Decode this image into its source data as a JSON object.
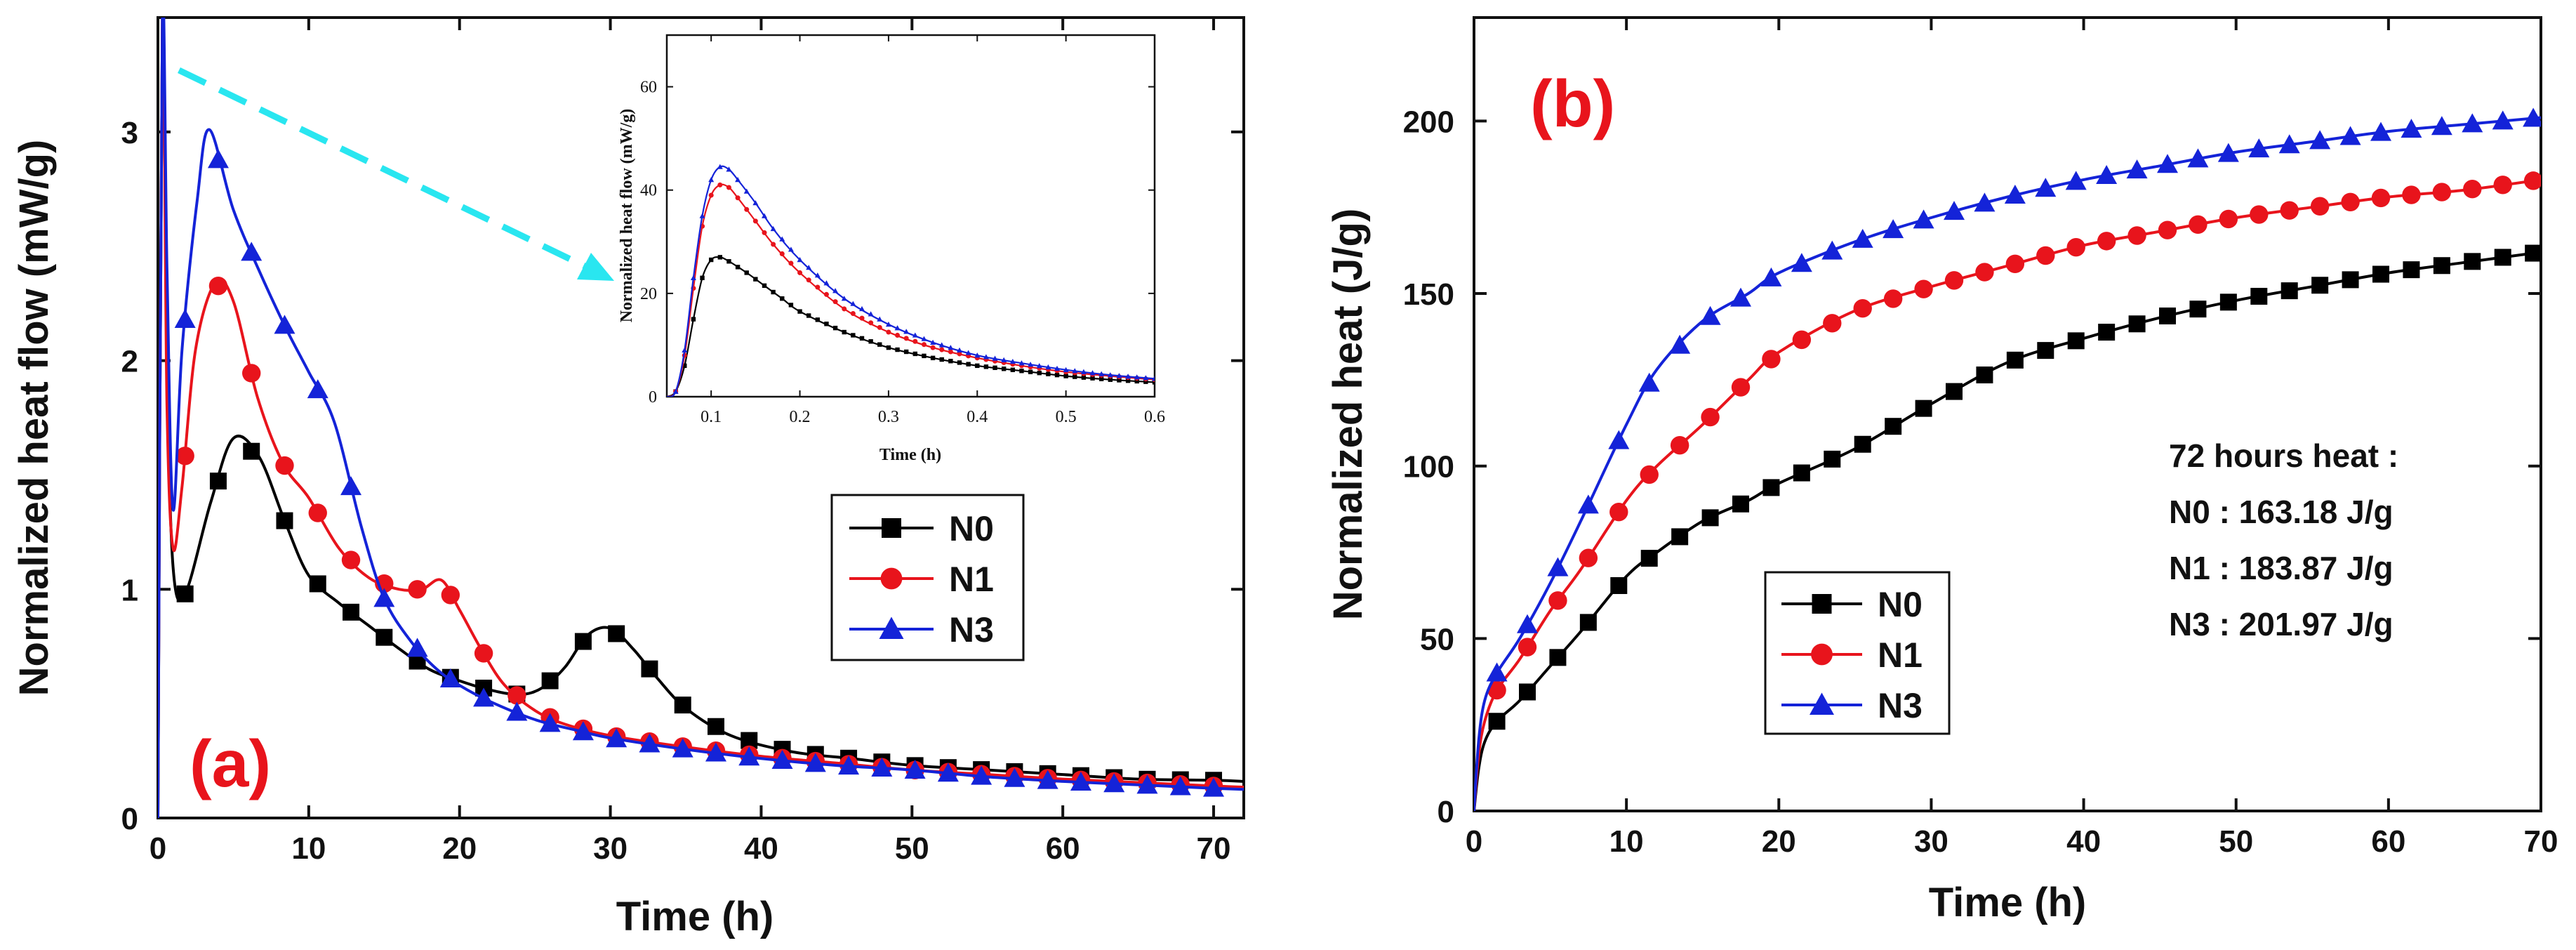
{
  "chart_data": [
    {
      "type": "line",
      "panel_label": "(a)",
      "xlabel": "Time (h)",
      "ylabel": "Normalized heat flow (mW/g)",
      "xlim": [
        0,
        72
      ],
      "ylim": [
        0,
        3.5
      ],
      "xticks": [
        "0",
        "10",
        "20",
        "30",
        "40",
        "50",
        "60",
        "70"
      ],
      "yticks": [
        "0",
        "1",
        "2",
        "3"
      ],
      "legend": {
        "placement": "center-right",
        "entries": [
          "N0",
          "N1",
          "N3"
        ]
      },
      "series": [
        {
          "name": "N0",
          "color": "#000000",
          "marker": "square",
          "x": [
            0,
            0.3,
            0.6,
            1.0,
            1.8,
            3.5,
            5.0,
            6.7,
            8.4,
            10.0,
            12.0,
            14.0,
            16.0,
            18.0,
            20.0,
            22.0,
            24.0,
            25.5,
            27.0,
            28.5,
            30.0,
            31.5,
            33.0,
            35.0,
            38.0,
            42.0,
            46.0,
            50.0,
            55.0,
            60.0,
            65.0,
            70.0,
            72.0
          ],
          "y": [
            0.0,
            3.5,
            2.0,
            1.1,
            0.98,
            1.38,
            1.66,
            1.58,
            1.3,
            1.06,
            0.94,
            0.84,
            0.74,
            0.65,
            0.6,
            0.56,
            0.54,
            0.57,
            0.66,
            0.8,
            0.83,
            0.74,
            0.62,
            0.48,
            0.36,
            0.29,
            0.26,
            0.23,
            0.21,
            0.19,
            0.17,
            0.165,
            0.16
          ]
        },
        {
          "name": "N1",
          "color": "#e8141c",
          "marker": "circle",
          "x": [
            0,
            0.3,
            0.6,
            1.0,
            1.6,
            2.5,
            3.8,
            5.0,
            6.6,
            8.3,
            10.0,
            12.0,
            14.0,
            16.0,
            17.5,
            18.8,
            20.0,
            21.5,
            23.0,
            25.0,
            27.0,
            30.0,
            35.0,
            40.0,
            45.0,
            50.0,
            55.0,
            60.0,
            65.0,
            70.0,
            72.0
          ],
          "y": [
            0.0,
            3.5,
            1.8,
            1.18,
            1.45,
            2.05,
            2.34,
            2.26,
            1.84,
            1.55,
            1.4,
            1.18,
            1.05,
            1.0,
            1.0,
            1.04,
            0.91,
            0.73,
            0.58,
            0.47,
            0.41,
            0.36,
            0.31,
            0.27,
            0.24,
            0.21,
            0.19,
            0.17,
            0.155,
            0.14,
            0.135
          ]
        },
        {
          "name": "N3",
          "color": "#1423d8",
          "marker": "triangle",
          "x": [
            0,
            0.3,
            0.6,
            1.0,
            1.6,
            2.6,
            3.4,
            5.0,
            6.8,
            8.5,
            10.0,
            11.7,
            13.5,
            15.0,
            16.8,
            18.5,
            20.0,
            22.0,
            25.0,
            28.0,
            30.0,
            35.0,
            40.0,
            45.0,
            50.0,
            55.0,
            60.0,
            65.0,
            70.0,
            72.0
          ],
          "y": [
            0.0,
            3.5,
            2.4,
            1.35,
            2.05,
            2.7,
            3.01,
            2.66,
            2.38,
            2.14,
            1.95,
            1.73,
            1.27,
            0.96,
            0.77,
            0.65,
            0.58,
            0.51,
            0.43,
            0.38,
            0.35,
            0.3,
            0.26,
            0.23,
            0.21,
            0.18,
            0.16,
            0.145,
            0.13,
            0.125
          ]
        }
      ],
      "inset": {
        "xlabel": "Time (h)",
        "ylabel": "Normalized heat flow (mW/g)",
        "xlim": [
          0.05,
          0.6
        ],
        "ylim": [
          0,
          70
        ],
        "xticks": [
          "0.1",
          "0.2",
          "0.3",
          "0.4",
          "0.5",
          "0.6"
        ],
        "yticks": [
          "0",
          "20",
          "40",
          "60"
        ],
        "series": [
          {
            "name": "N0",
            "x": [
              0.05,
              0.06,
              0.07,
              0.08,
              0.09,
              0.1,
              0.11,
              0.12,
              0.14,
              0.16,
              0.18,
              0.2,
              0.25,
              0.3,
              0.35,
              0.4,
              0.45,
              0.5,
              0.55,
              0.6
            ],
            "y": [
              0,
              1,
              6,
              15,
              23,
              26.5,
              27,
              26.2,
              24,
              21.5,
              19,
              16.5,
              12.5,
              9.5,
              7.5,
              6,
              5,
              4,
              3.3,
              2.8
            ]
          },
          {
            "name": "N1",
            "x": [
              0.05,
              0.06,
              0.07,
              0.08,
              0.09,
              0.1,
              0.11,
              0.12,
              0.13,
              0.15,
              0.17,
              0.2,
              0.25,
              0.3,
              0.35,
              0.4,
              0.45,
              0.5,
              0.55,
              0.6
            ],
            "y": [
              0,
              1,
              8,
              21,
              33,
              39,
              41,
              40.5,
              38.5,
              34,
              29.5,
              24,
              17,
              12.5,
              9.5,
              7.5,
              6,
              4.8,
              4,
              3.3
            ]
          },
          {
            "name": "N3",
            "x": [
              0.05,
              0.06,
              0.07,
              0.08,
              0.09,
              0.1,
              0.11,
              0.12,
              0.13,
              0.15,
              0.17,
              0.2,
              0.25,
              0.3,
              0.35,
              0.4,
              0.45,
              0.5,
              0.55,
              0.6
            ],
            "y": [
              0,
              1,
              9,
              23,
              35,
              42,
              44.5,
              44,
              42,
              37.5,
              32.5,
              26.5,
              19,
              14,
              10.5,
              8,
              6.5,
              5.2,
              4.2,
              3.5
            ]
          }
        ]
      }
    },
    {
      "type": "line",
      "panel_label": "(b)",
      "xlabel": "Time (h)",
      "ylabel": "Normalized heat (J/g)",
      "xlim": [
        0,
        70
      ],
      "ylim": [
        0,
        230
      ],
      "xticks": [
        "0",
        "10",
        "20",
        "30",
        "40",
        "50",
        "60",
        "70"
      ],
      "yticks": [
        "0",
        "50",
        "100",
        "150",
        "200"
      ],
      "legend": {
        "placement": "bottom-left",
        "entries": [
          "N0",
          "N1",
          "N3"
        ]
      },
      "annotation": {
        "title": "72 hours heat :",
        "lines": [
          "N0 : 163.18 J/g",
          "N1 : 183.87 J/g",
          "N3 : 201.97 J/g"
        ]
      },
      "series": [
        {
          "name": "N0",
          "color": "#000000",
          "marker": "square",
          "x": [
            0,
            0.3,
            0.7,
            1.5,
            3,
            5,
            7,
            10,
            12,
            15,
            18,
            20,
            25,
            30,
            35,
            40,
            45,
            50,
            55,
            60,
            65,
            70
          ],
          "y": [
            0,
            12,
            20,
            26,
            32,
            42,
            52,
            68,
            75,
            84,
            90,
            95,
            105,
            118,
            130,
            137,
            143,
            148,
            152,
            156,
            159,
            162
          ]
        },
        {
          "name": "N1",
          "color": "#e8141c",
          "marker": "circle",
          "x": [
            0,
            0.3,
            0.7,
            1.5,
            3,
            5,
            7,
            10,
            12,
            15,
            18,
            20,
            25,
            30,
            35,
            40,
            45,
            50,
            55,
            60,
            65,
            70
          ],
          "y": [
            0,
            16,
            26,
            35,
            44,
            58,
            70,
            90,
            100,
            112,
            125,
            133,
            145,
            152,
            158,
            164,
            168,
            172,
            175,
            178,
            180,
            183
          ]
        },
        {
          "name": "N3",
          "color": "#1423d8",
          "marker": "triangle",
          "x": [
            0,
            0.3,
            0.7,
            1.5,
            3,
            5,
            7,
            10,
            12,
            15,
            18,
            20,
            25,
            30,
            35,
            40,
            45,
            50,
            55,
            60,
            65,
            70
          ],
          "y": [
            0,
            20,
            32,
            40,
            50,
            66,
            84,
            112,
            128,
            142,
            150,
            156,
            165,
            172,
            178,
            183,
            187,
            191,
            194,
            197,
            199,
            201
          ]
        }
      ]
    }
  ]
}
